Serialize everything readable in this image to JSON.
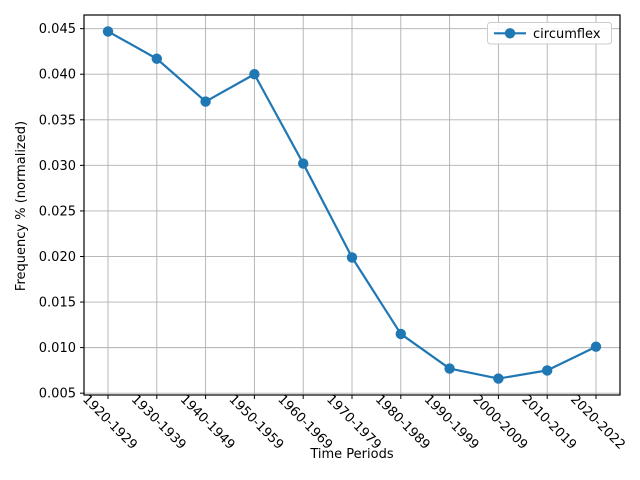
{
  "figure": {
    "background": "#ffffff",
    "axes_color": "#000000",
    "tick_label_color": "#000000"
  },
  "chart_data": {
    "type": "line",
    "title": "",
    "xlabel": "Time Periods",
    "ylabel": "Frequency % (normalized)",
    "categories": [
      "1920-1929",
      "1930-1939",
      "1940-1949",
      "1950-1959",
      "1960-1969",
      "1970-1979",
      "1980-1989",
      "1990-1999",
      "2000-2009",
      "2010-2019",
      "2020-2022"
    ],
    "series": [
      {
        "name": "circumflex",
        "color": "#1f77b4",
        "marker": "circle",
        "values": [
          0.0447,
          0.0417,
          0.037,
          0.04,
          0.0302,
          0.0199,
          0.0115,
          0.0077,
          0.0066,
          0.0075,
          0.0101
        ]
      }
    ],
    "yticks": [
      0.005,
      0.01,
      0.015,
      0.02,
      0.025,
      0.03,
      0.035,
      0.04,
      0.045
    ],
    "ytick_decimals": 3,
    "ylim": [
      0.0048,
      0.0465
    ],
    "xtick_rotation_deg": 45,
    "grid": true,
    "grid_color": "#b0b0b0",
    "legend": {
      "position": "upper right",
      "entries": [
        "circumflex"
      ]
    }
  }
}
